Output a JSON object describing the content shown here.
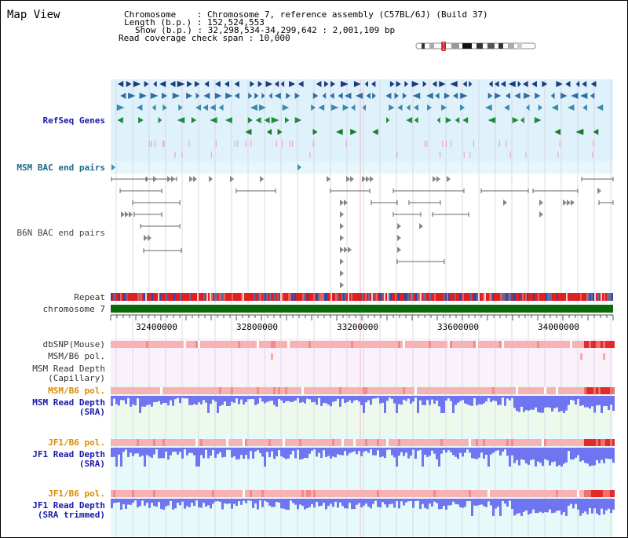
{
  "map_title": "Map View",
  "info": {
    "chromosome_key": "Chromosome",
    "chromosome_value": "Chromosome 7, reference assembly (C57BL/6J) (Build 37)",
    "length_key": "Length (b.p.)",
    "length_value": "152,524,553",
    "show_key": "Show (b.p.)",
    "show_value": "32,298,534-34,299,642 : 2,001,109 bp",
    "coverage_key": "Read coverage check span",
    "coverage_value": "10,000"
  },
  "tracks": {
    "refseq": "RefSeq Genes",
    "msm_bac": "MSM BAC end pairs",
    "b6n_bac": "B6N BAC end pairs",
    "repeat": "Repeat",
    "chromosome": "chromosome 7",
    "dbsnp": "dbSNP(Mouse)",
    "msm_b6_pol_1": "MSM/B6 pol.",
    "msm_capillary_1": "MSM Read Depth",
    "msm_capillary_2": "(Capillary)",
    "msm_b6_pol_2": "MSM/B6 pol.",
    "msm_sra_1": "MSM Read Depth",
    "msm_sra_2": "(SRA)",
    "jf1_b6_pol_1": "JF1/B6 pol.",
    "jf1_sra_1": "JF1 Read Depth",
    "jf1_sra_2": "(SRA)",
    "jf1_b6_pol_2": "JF1/B6 pol.",
    "jf1_trim_1": "JF1 Read Depth",
    "jf1_trim_2": "(SRA trimmed)"
  },
  "axis": {
    "ticks": [
      "32400000",
      "32800000",
      "33200000",
      "33600000",
      "34000000"
    ]
  },
  "colors": {
    "refseq_band": "#dff1fb",
    "msm_bac_band": "#e6f7fb",
    "label_blue": "#1a1aaa",
    "label_orange": "#e08a00",
    "label_teal": "#1a6a8a",
    "chromosome_green": "#0a6a0a",
    "depth_blue": "#6f74f0",
    "pol_pink": "#f7b3b3",
    "pol_red": "#e22a2a"
  }
}
